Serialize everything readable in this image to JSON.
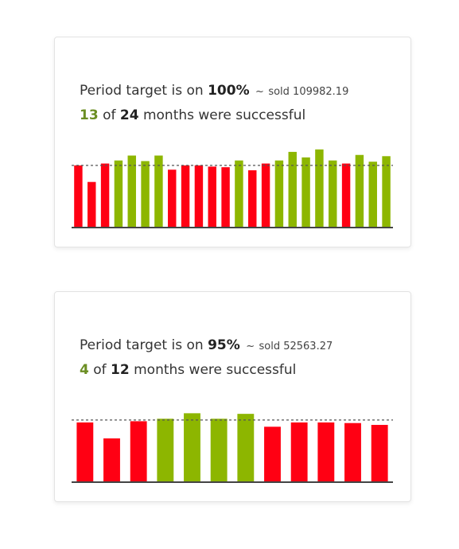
{
  "colors": {
    "success": "#8db600",
    "fail": "#ff0013",
    "success_text": "#6b8e23",
    "target_line": "#555555",
    "baseline": "#444444"
  },
  "cards": [
    {
      "prefix": "Period target is on",
      "target_pct": "100%",
      "tilde": "~",
      "sold_label": "sold 109982.19",
      "successful": "13",
      "of": "of",
      "total": "24",
      "suffix": "months were successful"
    },
    {
      "prefix": "Period target is on",
      "target_pct": "95%",
      "tilde": "~",
      "sold_label": "sold 52563.27",
      "successful": "4",
      "of": "of",
      "total": "12",
      "suffix": "months were successful"
    }
  ],
  "chart_data": [
    {
      "type": "bar",
      "target": 100,
      "ylim": [
        0,
        140
      ],
      "values": [
        100,
        73,
        103,
        108,
        116,
        107,
        116,
        93,
        100,
        100,
        98,
        97,
        108,
        92,
        103,
        108,
        122,
        113,
        126,
        108,
        103,
        117,
        106,
        115
      ],
      "success": [
        false,
        false,
        false,
        true,
        true,
        true,
        true,
        false,
        false,
        false,
        false,
        false,
        true,
        false,
        false,
        true,
        true,
        true,
        true,
        true,
        false,
        true,
        true,
        true
      ]
    },
    {
      "type": "bar",
      "target": 100,
      "ylim": [
        0,
        140
      ],
      "values": [
        96,
        70,
        98,
        102,
        111,
        102,
        110,
        89,
        96,
        96,
        95,
        92
      ],
      "success": [
        false,
        false,
        false,
        true,
        true,
        true,
        true,
        false,
        false,
        false,
        false,
        false
      ]
    }
  ]
}
